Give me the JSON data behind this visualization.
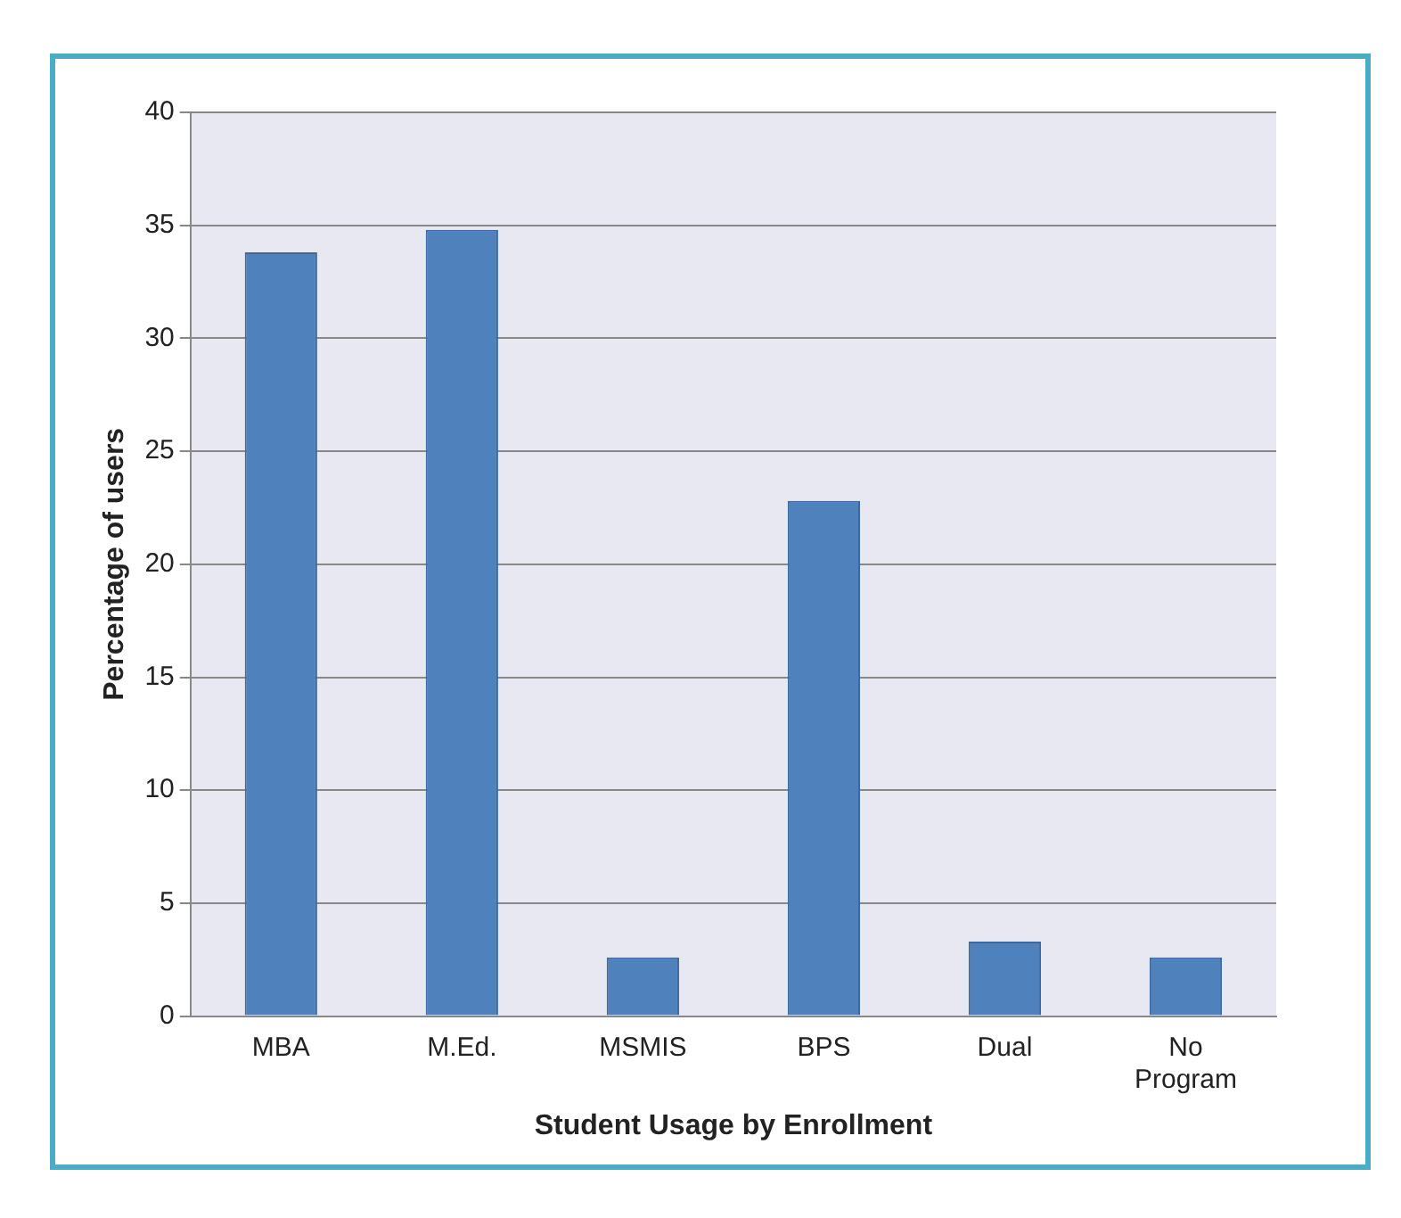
{
  "chart_data": {
    "type": "bar",
    "xlabel": "Student Usage by Enrollment",
    "ylabel": "Percentage of users",
    "categories": [
      "MBA",
      "M.Ed.",
      "MSMIS",
      "BPS",
      "Dual",
      "No Program"
    ],
    "values": [
      33.8,
      34.8,
      2.6,
      22.8,
      3.3,
      2.6
    ],
    "color": "#4f81bd",
    "ylim": [
      0,
      40
    ],
    "yticks": [
      0,
      5,
      10,
      15,
      20,
      25,
      30,
      35,
      40
    ],
    "grid": "y",
    "legend": false
  }
}
